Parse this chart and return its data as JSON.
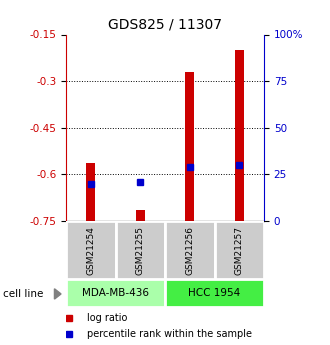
{
  "title": "GDS825 / 11307",
  "samples": [
    "GSM21254",
    "GSM21255",
    "GSM21256",
    "GSM21257"
  ],
  "log_ratio": [
    -0.565,
    -0.715,
    -0.27,
    -0.2
  ],
  "percentile_rank_pct": [
    20,
    21,
    29,
    30
  ],
  "bar_bottom": -0.75,
  "ylim_left": [
    -0.75,
    -0.15
  ],
  "ylim_right": [
    0,
    100
  ],
  "yticks_left": [
    -0.75,
    -0.6,
    -0.45,
    -0.3,
    -0.15
  ],
  "yticks_right": [
    0,
    25,
    50,
    75,
    100
  ],
  "ytick_labels_left": [
    "-0.75",
    "-0.6",
    "-0.45",
    "-0.3",
    "-0.15"
  ],
  "ytick_labels_right": [
    "0",
    "25",
    "50",
    "75",
    "100%"
  ],
  "hlines": [
    -0.3,
    -0.45,
    -0.6
  ],
  "bar_color": "#cc0000",
  "percentile_color": "#0000cc",
  "bar_width": 0.18,
  "cell_line_label": "cell line",
  "legend_items": [
    "log ratio",
    "percentile rank within the sample"
  ],
  "left_axis_color": "#cc0000",
  "right_axis_color": "#0000cc",
  "tick_area_color": "#cccccc",
  "cell_line_colors": [
    "#aaffaa",
    "#44ee44"
  ],
  "figsize": [
    3.3,
    3.45
  ],
  "dpi": 100
}
